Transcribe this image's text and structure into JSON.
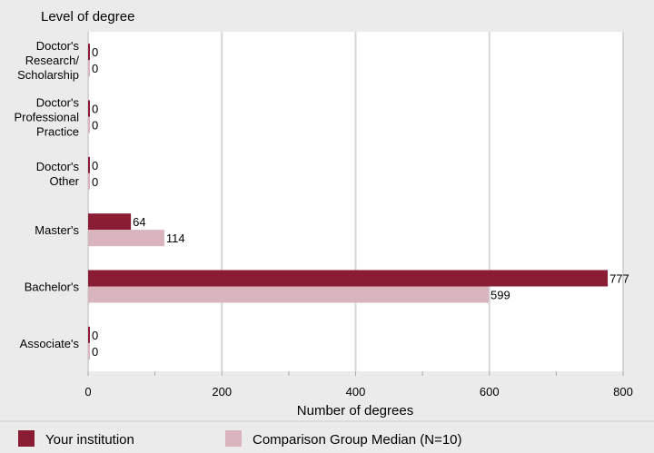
{
  "chart_data": {
    "type": "bar",
    "orientation": "horizontal",
    "title": "Level of degree",
    "xlabel": "Number of degrees",
    "xlim": [
      0,
      800
    ],
    "xticks": [
      0,
      200,
      400,
      600,
      800
    ],
    "grid": true,
    "legend_position": "bottom",
    "categories": [
      [
        "Doctor's",
        "Research/",
        "Scholarship"
      ],
      [
        "Doctor's",
        "Professional",
        "Practice"
      ],
      [
        "Doctor's",
        "Other"
      ],
      [
        "Master's"
      ],
      [
        "Bachelor's"
      ],
      [
        "Associate's"
      ]
    ],
    "series": [
      {
        "name": "Your institution",
        "color": "#8a1c33",
        "values": [
          0,
          0,
          0,
          64,
          777,
          0
        ]
      },
      {
        "name": "Comparison Group Median (N=10)",
        "color": "#d9b4bd",
        "values": [
          0,
          0,
          0,
          114,
          599,
          0
        ]
      }
    ]
  }
}
